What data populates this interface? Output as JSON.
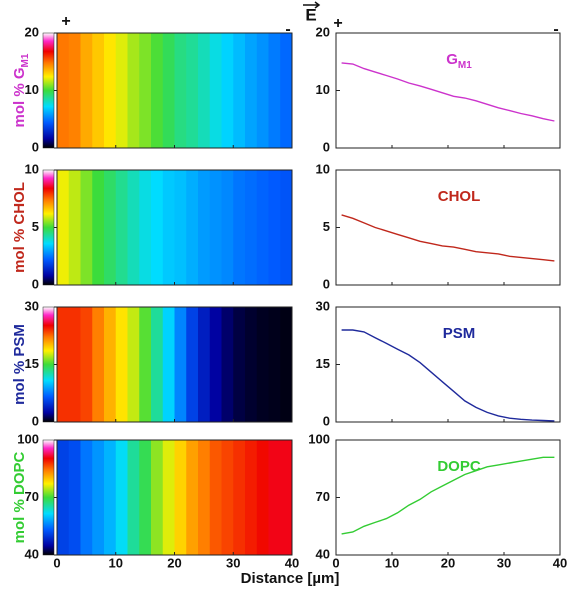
{
  "x_label": "Distance [µm]",
  "field_label": "E",
  "plus": "+",
  "minus": "-",
  "xlim": [
    0,
    40
  ],
  "xticks": [
    0,
    10,
    20,
    30,
    40
  ],
  "chart_data": [
    {
      "type": "heatmap",
      "ylabel": {
        "text": "mol % G",
        "sub": "M1"
      },
      "label": {
        "text": "G",
        "sub": "M1"
      },
      "color": "#cc33cc",
      "ylim": [
        0,
        20
      ],
      "yticks": [
        0,
        10,
        20
      ],
      "x": [
        1,
        3,
        5,
        7,
        9,
        11,
        13,
        15,
        17,
        19,
        21,
        23,
        25,
        27,
        29,
        31,
        33,
        35,
        37,
        39
      ],
      "values": [
        14.8,
        14.6,
        13.8,
        13.2,
        12.6,
        12.0,
        11.3,
        10.8,
        10.2,
        9.6,
        9.0,
        8.7,
        8.2,
        7.6,
        7.0,
        6.5,
        6.0,
        5.6,
        5.1,
        4.7
      ]
    },
    {
      "type": "heatmap",
      "ylabel": {
        "text": "mol % CHOL"
      },
      "label": {
        "text": "CHOL"
      },
      "color": "#c0281c",
      "ylim": [
        0,
        10
      ],
      "yticks": [
        0,
        5,
        10
      ],
      "x": [
        1,
        3,
        5,
        7,
        9,
        11,
        13,
        15,
        17,
        19,
        21,
        23,
        25,
        27,
        29,
        31,
        33,
        35,
        37,
        39
      ],
      "values": [
        6.1,
        5.8,
        5.4,
        5.0,
        4.7,
        4.4,
        4.1,
        3.8,
        3.6,
        3.4,
        3.3,
        3.1,
        2.9,
        2.8,
        2.7,
        2.5,
        2.4,
        2.3,
        2.2,
        2.1
      ]
    },
    {
      "type": "heatmap",
      "ylabel": {
        "text": "mol % PSM"
      },
      "label": {
        "text": "PSM"
      },
      "color": "#1f2a9c",
      "ylim": [
        0,
        30
      ],
      "yticks": [
        0,
        15,
        30
      ],
      "x": [
        1,
        3,
        5,
        7,
        9,
        11,
        13,
        15,
        17,
        19,
        21,
        23,
        25,
        27,
        29,
        31,
        33,
        35,
        37,
        39
      ],
      "values": [
        24,
        24,
        23.5,
        22,
        20.5,
        19,
        17.5,
        15.5,
        13,
        10.5,
        8,
        5.5,
        3.8,
        2.5,
        1.6,
        1.0,
        0.7,
        0.5,
        0.4,
        0.3
      ]
    },
    {
      "type": "heatmap",
      "ylabel": {
        "text": "mol % DOPC"
      },
      "label": {
        "text": "DOPC"
      },
      "color": "#33cc33",
      "ylim": [
        40,
        100
      ],
      "yticks": [
        40,
        70,
        100
      ],
      "x": [
        1,
        3,
        5,
        7,
        9,
        11,
        13,
        15,
        17,
        19,
        21,
        23,
        25,
        27,
        29,
        31,
        33,
        35,
        37,
        39
      ],
      "values": [
        51,
        52,
        55,
        57,
        59,
        62,
        66,
        69,
        73,
        76,
        79,
        82,
        84,
        86,
        87,
        88,
        89,
        90,
        91,
        91
      ]
    }
  ]
}
